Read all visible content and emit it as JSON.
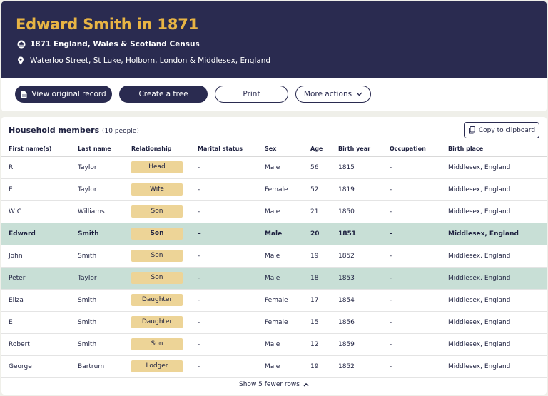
{
  "header": {
    "title": "Edward Smith in 1871",
    "census": "1871 England, Wales & Scotland Census",
    "address": "Waterloo Street, St Luke, Holborn, London & Middlesex, England",
    "census_icon": "building-icon",
    "address_icon": "map-pin-icon"
  },
  "actions": {
    "view_record": "View original record",
    "create_tree": "Create a tree",
    "print": "Print",
    "more_actions": "More actions"
  },
  "household": {
    "title": "Household members",
    "count": "(10 people)",
    "copy": "Copy to clipboard",
    "columns": [
      "First name(s)",
      "Last name",
      "Relationship",
      "Marital status",
      "Sex",
      "Age",
      "Birth year",
      "Occupation",
      "Birth place"
    ],
    "rows": [
      {
        "first": "R",
        "last": "Taylor",
        "rel": "Head",
        "marital": "-",
        "sex": "Male",
        "age": "56",
        "birth_year": "1815",
        "occupation": "-",
        "birthplace": "Middlesex, England",
        "highlight": false,
        "bold": false
      },
      {
        "first": "E",
        "last": "Taylor",
        "rel": "Wife",
        "marital": "-",
        "sex": "Female",
        "age": "52",
        "birth_year": "1819",
        "occupation": "-",
        "birthplace": "Middlesex, England",
        "highlight": false,
        "bold": false
      },
      {
        "first": "W C",
        "last": "Williams",
        "rel": "Son",
        "marital": "-",
        "sex": "Male",
        "age": "21",
        "birth_year": "1850",
        "occupation": "-",
        "birthplace": "Middlesex, England",
        "highlight": false,
        "bold": false
      },
      {
        "first": "Edward",
        "last": "Smith",
        "rel": "Son",
        "marital": "-",
        "sex": "Male",
        "age": "20",
        "birth_year": "1851",
        "occupation": "-",
        "birthplace": "Middlesex, England",
        "highlight": true,
        "bold": true
      },
      {
        "first": "John",
        "last": "Smith",
        "rel": "Son",
        "marital": "-",
        "sex": "Male",
        "age": "19",
        "birth_year": "1852",
        "occupation": "-",
        "birthplace": "Middlesex, England",
        "highlight": false,
        "bold": false
      },
      {
        "first": "Peter",
        "last": "Taylor",
        "rel": "Son",
        "marital": "-",
        "sex": "Male",
        "age": "18",
        "birth_year": "1853",
        "occupation": "-",
        "birthplace": "Middlesex, England",
        "highlight": true,
        "bold": false
      },
      {
        "first": "Eliza",
        "last": "Smith",
        "rel": "Daughter",
        "marital": "-",
        "sex": "Female",
        "age": "17",
        "birth_year": "1854",
        "occupation": "-",
        "birthplace": "Middlesex, England",
        "highlight": false,
        "bold": false
      },
      {
        "first": "E",
        "last": "Smith",
        "rel": "Daughter",
        "marital": "-",
        "sex": "Female",
        "age": "15",
        "birth_year": "1856",
        "occupation": "-",
        "birthplace": "Middlesex, England",
        "highlight": false,
        "bold": false
      },
      {
        "first": "Robert",
        "last": "Smith",
        "rel": "Son",
        "marital": "-",
        "sex": "Male",
        "age": "12",
        "birth_year": "1859",
        "occupation": "-",
        "birthplace": "Middlesex, England",
        "highlight": false,
        "bold": false
      },
      {
        "first": "George",
        "last": "Bartrum",
        "rel": "Lodger",
        "marital": "-",
        "sex": "Male",
        "age": "19",
        "birth_year": "1852",
        "occupation": "-",
        "birthplace": "Middlesex, England",
        "highlight": false,
        "bold": false
      }
    ],
    "show_fewer": "Show 5 fewer rows"
  },
  "colors": {
    "header_bg": "#2a2b50",
    "title": "#e8b444",
    "badge": "#edd497",
    "highlight_row": "#c8dfd6"
  }
}
